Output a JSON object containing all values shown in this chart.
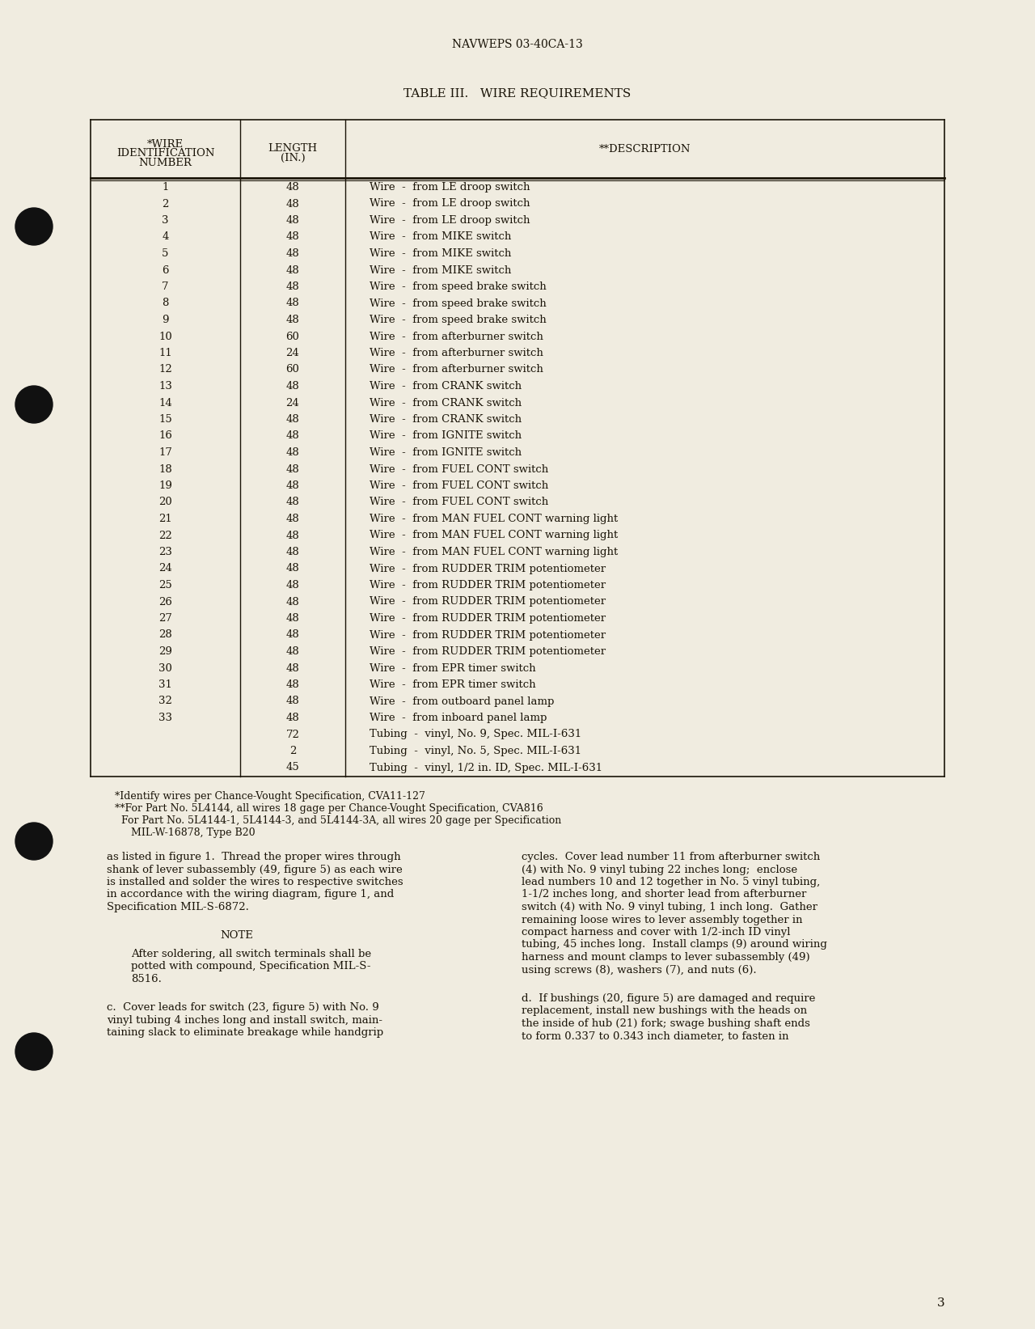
{
  "bg_color": "#f0ece0",
  "text_color": "#1a1408",
  "header_text": "NAVWEPS 03-40CA-13",
  "table_title": "TABLE III.   WIRE REQUIREMENTS",
  "col_headers_1": "*WIRE\nIDENTIFICATION\nNUMBER",
  "col_headers_2": "LENGTH\n(IN.)",
  "col_headers_3": "**DESCRIPTION",
  "table_rows": [
    [
      "1",
      "48",
      "Wire  -  from LE droop switch"
    ],
    [
      "2",
      "48",
      "Wire  -  from LE droop switch"
    ],
    [
      "3",
      "48",
      "Wire  -  from LE droop switch"
    ],
    [
      "4",
      "48",
      "Wire  -  from MIKE switch"
    ],
    [
      "5",
      "48",
      "Wire  -  from MIKE switch"
    ],
    [
      "6",
      "48",
      "Wire  -  from MIKE switch"
    ],
    [
      "7",
      "48",
      "Wire  -  from speed brake switch"
    ],
    [
      "8",
      "48",
      "Wire  -  from speed brake switch"
    ],
    [
      "9",
      "48",
      "Wire  -  from speed brake switch"
    ],
    [
      "10",
      "60",
      "Wire  -  from afterburner switch"
    ],
    [
      "11",
      "24",
      "Wire  -  from afterburner switch"
    ],
    [
      "12",
      "60",
      "Wire  -  from afterburner switch"
    ],
    [
      "13",
      "48",
      "Wire  -  from CRANK switch"
    ],
    [
      "14",
      "24",
      "Wire  -  from CRANK switch"
    ],
    [
      "15",
      "48",
      "Wire  -  from CRANK switch"
    ],
    [
      "16",
      "48",
      "Wire  -  from IGNITE switch"
    ],
    [
      "17",
      "48",
      "Wire  -  from IGNITE switch"
    ],
    [
      "18",
      "48",
      "Wire  -  from FUEL CONT switch"
    ],
    [
      "19",
      "48",
      "Wire  -  from FUEL CONT switch"
    ],
    [
      "20",
      "48",
      "Wire  -  from FUEL CONT switch"
    ],
    [
      "21",
      "48",
      "Wire  -  from MAN FUEL CONT warning light"
    ],
    [
      "22",
      "48",
      "Wire  -  from MAN FUEL CONT warning light"
    ],
    [
      "23",
      "48",
      "Wire  -  from MAN FUEL CONT warning light"
    ],
    [
      "24",
      "48",
      "Wire  -  from RUDDER TRIM potentiometer"
    ],
    [
      "25",
      "48",
      "Wire  -  from RUDDER TRIM potentiometer"
    ],
    [
      "26",
      "48",
      "Wire  -  from RUDDER TRIM potentiometer"
    ],
    [
      "27",
      "48",
      "Wire  -  from RUDDER TRIM potentiometer"
    ],
    [
      "28",
      "48",
      "Wire  -  from RUDDER TRIM potentiometer"
    ],
    [
      "29",
      "48",
      "Wire  -  from RUDDER TRIM potentiometer"
    ],
    [
      "30",
      "48",
      "Wire  -  from EPR timer switch"
    ],
    [
      "31",
      "48",
      "Wire  -  from EPR timer switch"
    ],
    [
      "32",
      "48",
      "Wire  -  from outboard panel lamp"
    ],
    [
      "33",
      "48",
      "Wire  -  from inboard panel lamp"
    ],
    [
      "",
      "72",
      "Tubing  -  vinyl, No. 9, Spec. MIL-I-631"
    ],
    [
      "",
      "2",
      "Tubing  -  vinyl, No. 5, Spec. MIL-I-631"
    ],
    [
      "",
      "45",
      "Tubing  -  vinyl, 1/2 in. ID, Spec. MIL-I-631"
    ]
  ],
  "footnote1": "*Identify wires per Chance-Vought Specification, CVA11-127",
  "footnote2": "**For Part No. 5L4144, all wires 18 gage per Chance-Vought Specification, CVA816",
  "footnote3": "  For Part No. 5L4144-1, 5L4144-3, and 5L4144-3A, all wires 20 gage per Specification",
  "footnote4": "     MIL-W-16878, Type B20",
  "body_left1": "as listed in figure 1.  Thread the proper wires through\nshank of lever subassembly (49, figure 5) as each wire\nis installed and solder the wires to respective switches\nin accordance with the wiring diagram, figure 1, and\nSpecification MIL-S-6872.",
  "note_header": "NOTE",
  "note_body": "After soldering, all switch terminals shall be\npotted with compound, Specification MIL-S-\n8516.",
  "body_left2": "c.  Cover leads for switch (23, figure 5) with No. 9\nvinyl tubing 4 inches long and install switch, main-\ntaining slack to eliminate breakage while handgrip",
  "body_right1": "cycles.  Cover lead number 11 from afterburner switch\n(4) with No. 9 vinyl tubing 22 inches long;  enclose\nlead numbers 10 and 12 together in No. 5 vinyl tubing,\n1-1/2 inches long, and shorter lead from afterburner\nswitch (4) with No. 9 vinyl tubing, 1 inch long.  Gather\nremaining loose wires to lever assembly together in\ncompact harness and cover with 1/2-inch ID vinyl\ntubing, 45 inches long.  Install clamps (9) around wiring\nharness and mount clamps to lever subassembly (49)\nusing screws (8), washers (7), and nuts (6).",
  "body_right2": "d.  If bushings (20, figure 5) are damaged and require\nreplacement, install new bushings with the heads on\nthe inside of hub (21) fork; swage bushing shaft ends\nto form 0.337 to 0.343 inch diameter, to fasten in",
  "page_number": "3"
}
